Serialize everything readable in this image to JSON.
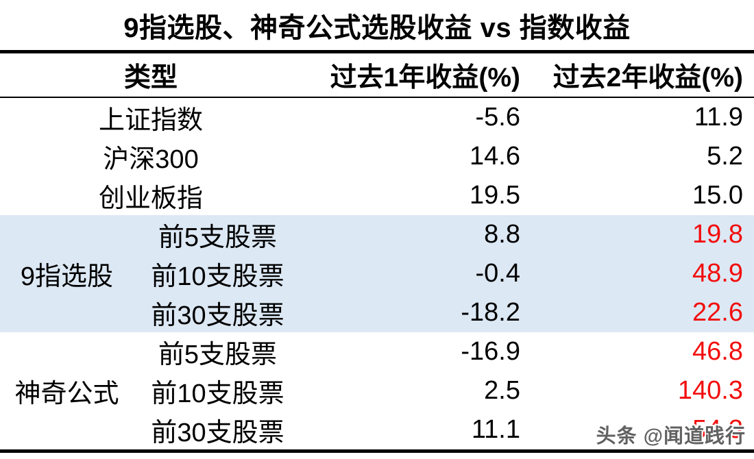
{
  "title": "9指选股、神奇公式选股收益 vs 指数收益",
  "watermark": "头条 @闻道践行",
  "colors": {
    "highlight_row_bg": "#dce8f4",
    "highlight_value_red": "#f20d0d",
    "text": "#000000",
    "rule": "#000000",
    "background": "#ffffff"
  },
  "table": {
    "headers": [
      "类型",
      "过去1年收益(%)",
      "过去2年收益(%)"
    ],
    "index_rows": [
      {
        "name": "上证指数",
        "y1": "-5.6",
        "y2": "11.9"
      },
      {
        "name": "沪深300",
        "y1": "14.6",
        "y2": "5.2"
      },
      {
        "name": "创业板指",
        "y1": "19.5",
        "y2": "15.0"
      }
    ],
    "groups": [
      {
        "label": "9指选股",
        "highlighted": true,
        "rows": [
          {
            "name": "前5支股票",
            "y1": "8.8",
            "y2": "19.8"
          },
          {
            "name": "前10支股票",
            "y1": "-0.4",
            "y2": "48.9"
          },
          {
            "name": "前30支股票",
            "y1": "-18.2",
            "y2": "22.6"
          }
        ]
      },
      {
        "label": "神奇公式",
        "highlighted": false,
        "rows": [
          {
            "name": "前5支股票",
            "y1": "-16.9",
            "y2": "46.8"
          },
          {
            "name": "前10支股票",
            "y1": "2.5",
            "y2": "140.3"
          },
          {
            "name": "前30支股票",
            "y1": "11.1",
            "y2": "54.3"
          }
        ]
      }
    ]
  },
  "chart_data": {
    "type": "table",
    "title": "9指选股、神奇公式选股收益 vs 指数收益",
    "columns": [
      "类型",
      "过去1年收益(%)",
      "过去2年收益(%)"
    ],
    "rows": [
      [
        "上证指数",
        -5.6,
        11.9
      ],
      [
        "沪深300",
        14.6,
        5.2
      ],
      [
        "创业板指",
        19.5,
        15.0
      ],
      [
        "9指选股 前5支股票",
        8.8,
        19.8
      ],
      [
        "9指选股 前10支股票",
        -0.4,
        48.9
      ],
      [
        "9指选股 前30支股票",
        -18.2,
        22.6
      ],
      [
        "神奇公式 前5支股票",
        -16.9,
        46.8
      ],
      [
        "神奇公式 前10支股票",
        2.5,
        140.3
      ],
      [
        "神奇公式 前30支股票",
        11.1,
        54.3
      ]
    ],
    "notes": {
      "highlighted_group": "9指选股",
      "red_values_column": "过去2年收益(%) for strategy rows"
    }
  }
}
